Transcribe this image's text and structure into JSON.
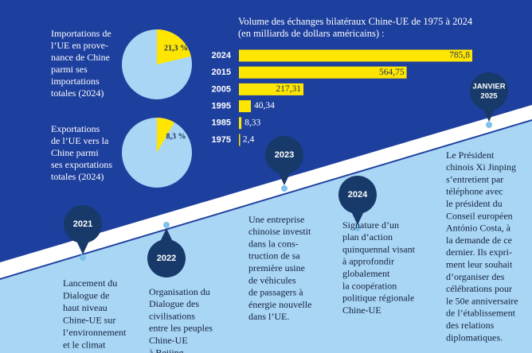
{
  "chart_data": [
    {
      "type": "pie",
      "title": [
        "Importations de",
        "l’UE en prove-",
        "nance de Chine",
        "parmi ses",
        "importations",
        "totales (2024)"
      ],
      "values": [
        21.3
      ],
      "value_labels": [
        "21,3 %"
      ],
      "color": "#ffe600",
      "background": "#a9d6f5"
    },
    {
      "type": "pie",
      "title": [
        "Exportations",
        "de l’UE vers la",
        "Chine parmi",
        "ses exportations",
        "totales (2024)"
      ],
      "values": [
        8.3
      ],
      "value_labels": [
        "8,3 %"
      ],
      "color": "#ffe600",
      "background": "#a9d6f5"
    },
    {
      "type": "bar",
      "orientation": "horizontal",
      "title": [
        "Volume des échanges bilatéraux Chine-UE de 1975 à 2024",
        "(en milliards de dollars américains) :"
      ],
      "categories": [
        "2024",
        "2015",
        "2005",
        "1995",
        "1985",
        "1975"
      ],
      "values": [
        785.8,
        564.75,
        217.31,
        40.34,
        8.33,
        2.4
      ],
      "value_labels": [
        "785,8",
        "564,75",
        "217,31",
        "40,34",
        "8,33",
        "2,4"
      ],
      "color": "#ffe600"
    }
  ],
  "timeline": [
    {
      "badge": [
        "2021"
      ],
      "text": [
        "Lancement du",
        "Dialogue de",
        "haut niveau",
        "Chine-UE sur",
        "l’environnement",
        "et le climat"
      ]
    },
    {
      "badge": [
        "2022"
      ],
      "text": [
        "Organisation du",
        "Dialogue des",
        "civilisations",
        "entre les peuples",
        "Chine-UE",
        "à Beijing"
      ]
    },
    {
      "badge": [
        "2023"
      ],
      "text": [
        "Une entreprise",
        "chinoise investit",
        "dans la cons-",
        "truction de sa",
        "première usine",
        "de véhicules",
        "de passagers à",
        "énergie nouvelle",
        "dans l’UE."
      ]
    },
    {
      "badge": [
        "2024"
      ],
      "text": [
        "Signature d’un",
        "plan d’action",
        "quinquennal visant",
        "à approfondir",
        "globalement",
        "la coopération",
        "politique régionale",
        "Chine-UE"
      ]
    },
    {
      "badge": [
        "JANVIER",
        "2025"
      ],
      "text": [
        "Le Président",
        "chinois Xi Jinping",
        "s’entretient par",
        "téléphone avec",
        "le président du",
        "Conseil européen",
        "António Costa, à",
        "la demande de ce",
        "dernier. Ils expri-",
        "ment leur souhait",
        "d’organiser des",
        "célébrations pour",
        "le 50e anniversaire",
        "de l’établissement",
        "des relations",
        "diplomatiques."
      ]
    }
  ]
}
